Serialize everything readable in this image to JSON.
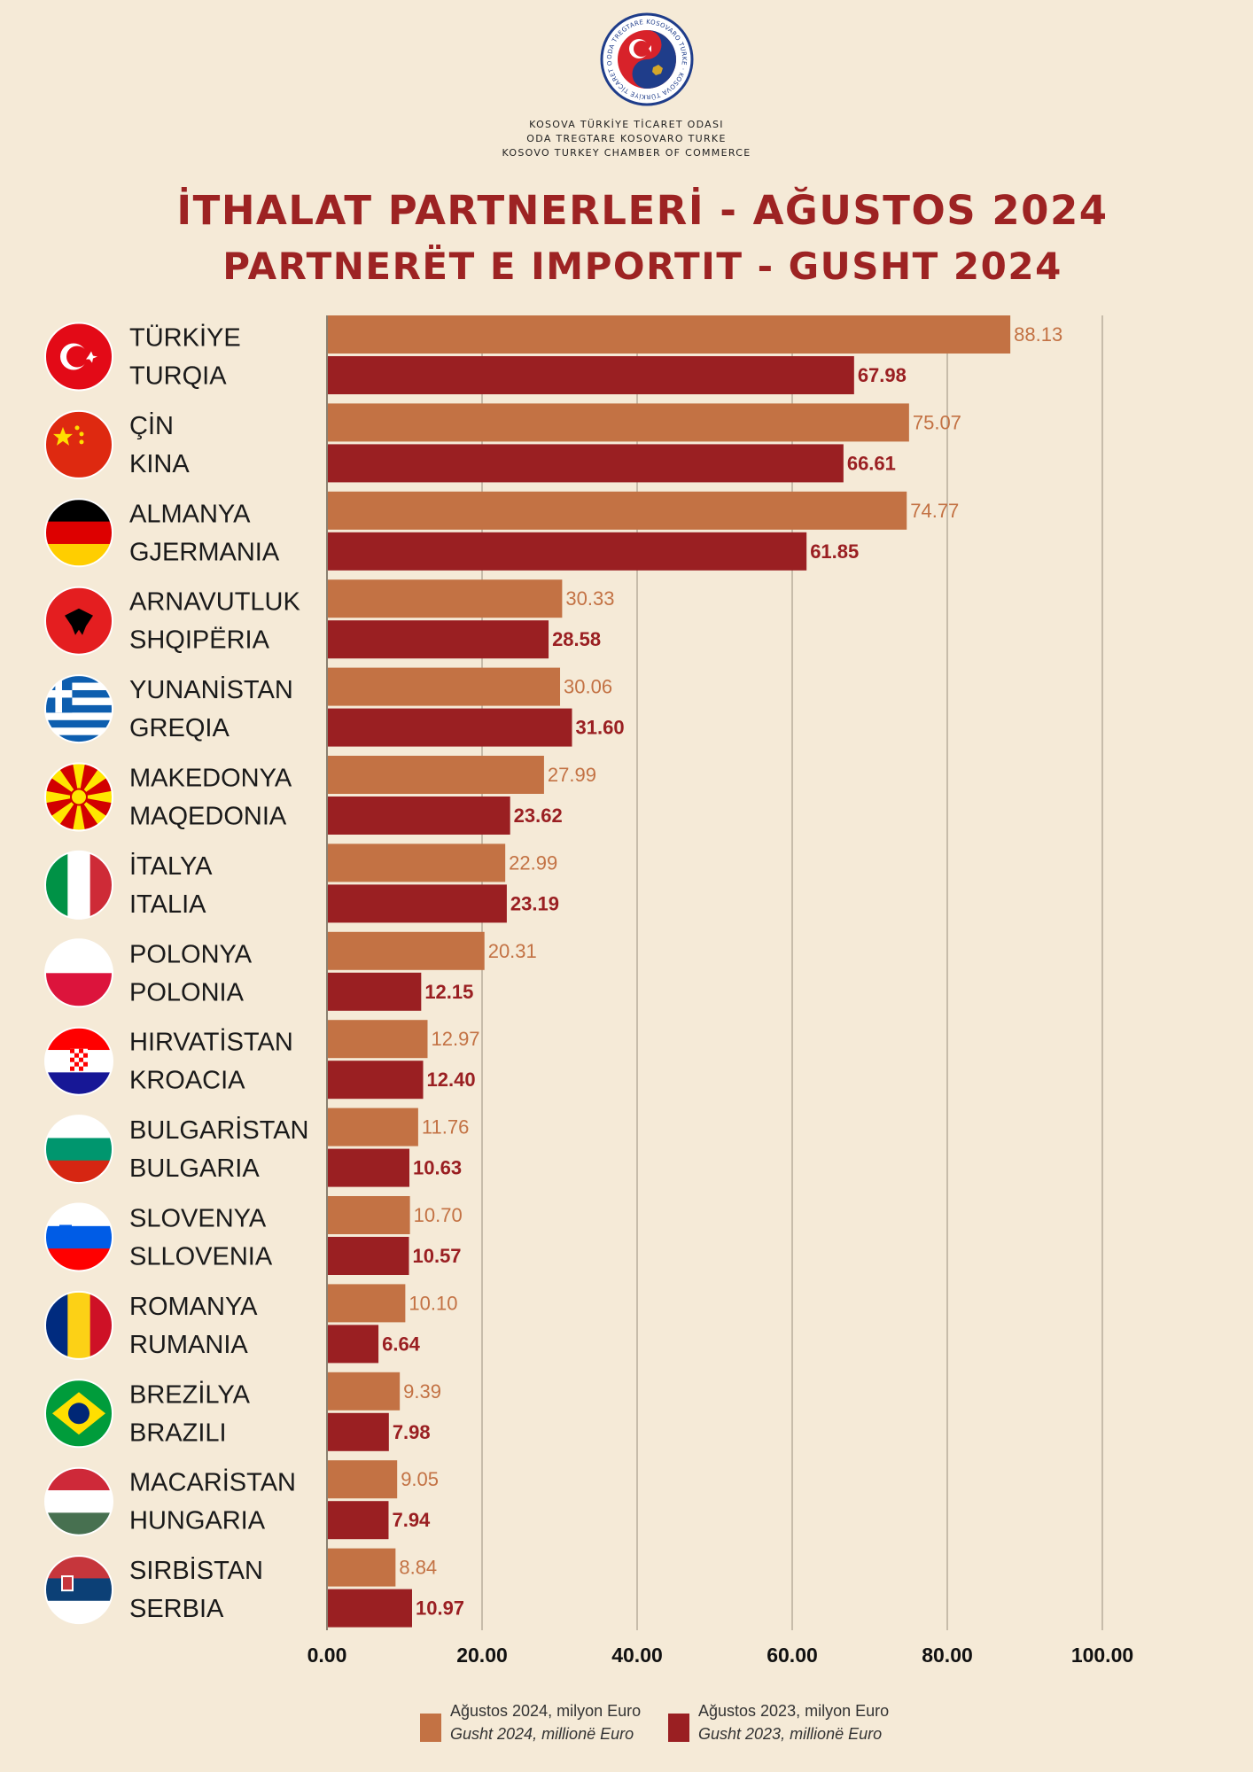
{
  "header": {
    "org_lines": [
      "KOSOVA TÜRKİYE TİCARET ODASI",
      "ODA TREGTARE KOSOVARO TURKE",
      "KOSOVO TURKEY CHAMBER OF COMMERCE"
    ],
    "logo_text": "ODA TREGTARE KOSOVARO TURKE · KOSOVA TÜRKİYE TİCARET ODASI",
    "title_line1": "İTHALAT PARTNERLERİ - AĞUSTOS 2024",
    "title_line2": "PARTNERËT E IMPORTIT - GUSHT 2024"
  },
  "colors": {
    "background": "#f5ead7",
    "series_2024": "#c37244",
    "series_2023": "#9a1f22",
    "title": "#9d2323",
    "grid": "#b8ad9c"
  },
  "legend": [
    {
      "line1": "Ağustos  2024, milyon Euro",
      "line2": "Gusht 2024, millionë Euro",
      "color": "#c37244"
    },
    {
      "line1": "Ağustos 2023, milyon Euro",
      "line2": "Gusht 2023, millionë Euro",
      "color": "#9a1f22"
    }
  ],
  "chart_data": {
    "type": "bar",
    "orientation": "horizontal",
    "categories": [
      {
        "tr": "TÜRKİYE",
        "sq": "TURQIA",
        "flag": "turkey-flag-icon"
      },
      {
        "tr": "ÇİN",
        "sq": "KINA",
        "flag": "china-flag-icon"
      },
      {
        "tr": "ALMANYA",
        "sq": "GJERMANIA",
        "flag": "germany-flag-icon"
      },
      {
        "tr": "ARNAVUTLUK",
        "sq": "SHQIPËRIA",
        "flag": "albania-flag-icon"
      },
      {
        "tr": "YUNANİSTAN",
        "sq": "GREQIA",
        "flag": "greece-flag-icon"
      },
      {
        "tr": "MAKEDONYA",
        "sq": "MAQEDONIA",
        "flag": "north-macedonia-flag-icon"
      },
      {
        "tr": "İTALYA",
        "sq": "ITALIA",
        "flag": "italy-flag-icon"
      },
      {
        "tr": "POLONYA",
        "sq": "POLONIA",
        "flag": "poland-flag-icon"
      },
      {
        "tr": "HIRVATİSTAN",
        "sq": "KROACIA",
        "flag": "croatia-flag-icon"
      },
      {
        "tr": "BULGARİSTAN",
        "sq": "BULGARIA",
        "flag": "bulgaria-flag-icon"
      },
      {
        "tr": "SLOVENYA",
        "sq": "SLLOVENIA",
        "flag": "slovenia-flag-icon"
      },
      {
        "tr": "ROMANYA",
        "sq": "RUMANIA",
        "flag": "romania-flag-icon"
      },
      {
        "tr": "BREZİLYA",
        "sq": "BRAZILI",
        "flag": "brazil-flag-icon"
      },
      {
        "tr": "MACARİSTAN",
        "sq": "HUNGARIA",
        "flag": "hungary-flag-icon"
      },
      {
        "tr": "SIRBİSTAN",
        "sq": "SERBIA",
        "flag": "serbia-flag-icon"
      }
    ],
    "series": [
      {
        "name": "Ağustos  2024, milyon Euro",
        "values": [
          88.13,
          75.07,
          74.77,
          30.33,
          30.06,
          27.99,
          22.99,
          20.31,
          12.97,
          11.76,
          10.7,
          10.1,
          9.39,
          9.05,
          8.84
        ],
        "labels": [
          "88.13",
          "75.07",
          "74.77",
          "30.33",
          "30.06",
          "27.99",
          "22.99",
          "20.31",
          "12.97",
          "11.76",
          "10.70",
          "10.10",
          "9.39",
          "9.05",
          "8.84"
        ]
      },
      {
        "name": "Ağustos 2023, milyon Euro",
        "values": [
          67.98,
          66.61,
          61.85,
          28.58,
          31.6,
          23.62,
          23.19,
          12.15,
          12.4,
          10.63,
          10.57,
          6.64,
          7.98,
          7.94,
          10.97
        ],
        "labels": [
          "67.98",
          "66.61",
          "61.85",
          "28.58",
          "31.60",
          "23.62",
          "23.19",
          "12.15",
          "12.40",
          "10.63",
          "10.57",
          "6.64",
          "7.98",
          "7.94",
          "10.97"
        ]
      }
    ],
    "xlim": [
      0,
      100
    ],
    "xticks": [
      "0.00",
      "20.00",
      "40.00",
      "60.00",
      "80.00",
      "100.00"
    ],
    "grid": "vertical",
    "legend_position": "bottom"
  }
}
